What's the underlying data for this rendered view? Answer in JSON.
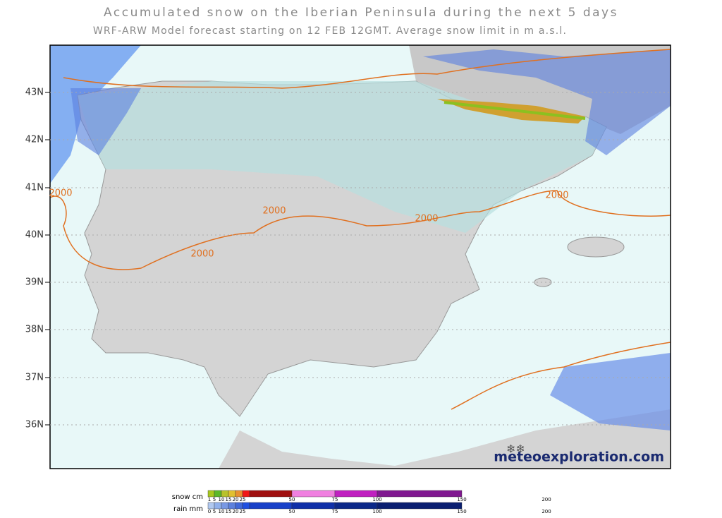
{
  "header": {
    "title": "Accumulated snow on the Iberian Peninsula during the next 5 days",
    "subtitle": "WRF-ARW Model forecast starting on 12 FEB 12GMT.  Average snow limit in m a.s.l."
  },
  "map": {
    "lat_labels": [
      "43N",
      "42N",
      "41N",
      "40N",
      "39N",
      "38N",
      "37N",
      "36N"
    ],
    "contour_labels": [
      "2000",
      "2000",
      "2000",
      "2000",
      "2000"
    ],
    "brand": "meteoexploration.com"
  },
  "legend": {
    "snow": {
      "label": "snow cm",
      "ticks": [
        "1",
        "5",
        "10",
        "15",
        "20",
        "25",
        "50",
        "75",
        "100",
        "150",
        "200"
      ],
      "colors": [
        "#a8c81e",
        "#5cb82a",
        "#b8c22c",
        "#e0c030",
        "#e89030",
        "#f01818",
        "#a01010",
        "#f080e0",
        "#c020c0",
        "#801890"
      ]
    },
    "rain": {
      "label": "rain mm",
      "ticks": [
        "0",
        "5",
        "10",
        "15",
        "20",
        "25",
        "50",
        "75",
        "100",
        "150",
        "200"
      ],
      "colors": [
        "#b0c8f0",
        "#90b0ec",
        "#7898e4",
        "#5c80dc",
        "#4068d8",
        "#2050e0",
        "#1840c8",
        "#1030a8",
        "#0c2888",
        "#0a1e70"
      ]
    }
  }
}
